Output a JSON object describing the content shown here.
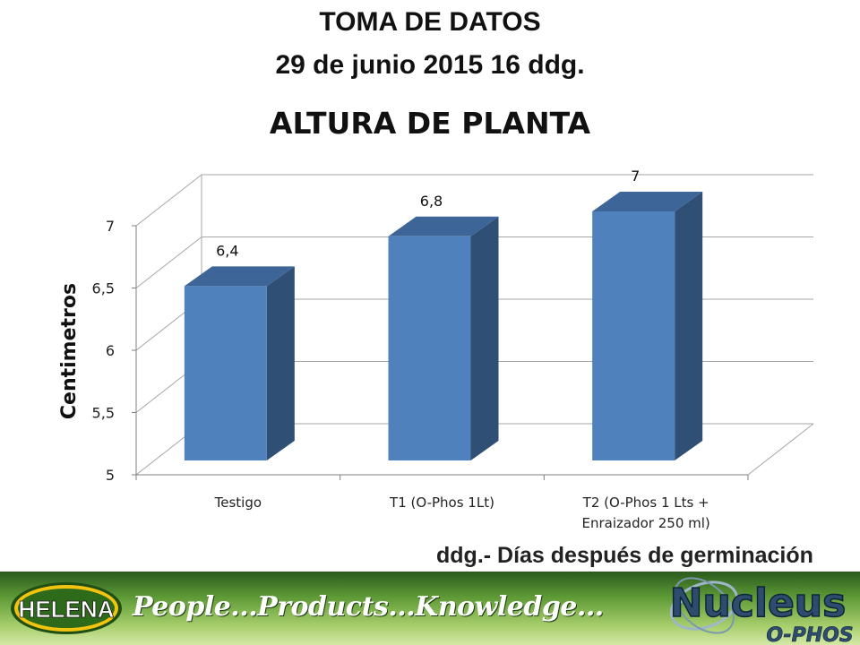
{
  "header": {
    "line1": "TOMA DE DATOS",
    "line2": "29 de junio 2015 16 ddg."
  },
  "chart_data": {
    "type": "bar",
    "title": "ALTURA DE PLANTA",
    "ylabel": "Centimetros",
    "xlabel": "",
    "categories": [
      "Testigo",
      "T1 (O-Phos 1Lt)",
      "T2 (O-Phos 1 Lts + Enraizador 250 ml)"
    ],
    "category_lines": [
      [
        "Testigo"
      ],
      [
        "T1 (O-Phos 1Lt)"
      ],
      [
        "T2 (O-Phos 1 Lts +",
        "Enraizador 250 ml)"
      ]
    ],
    "values": [
      6.4,
      6.8,
      7
    ],
    "value_labels": [
      "6,4",
      "6,8",
      "7"
    ],
    "ylim": [
      5,
      7
    ],
    "yticks": [
      5,
      5.5,
      6,
      6.5,
      7
    ],
    "ytick_labels": [
      "5",
      "5,5",
      "6",
      "6,5",
      "7"
    ],
    "grid": true,
    "style": "3d-column",
    "colors": {
      "bar_front": "#4f81bd",
      "bar_side": "#2f4f75",
      "bar_top": "#3e6597",
      "grid": "#a6a6a6"
    }
  },
  "footnote": "ddg.- Días después de germinación",
  "footer": {
    "brand": "HELENA",
    "slogan": "People...Products...Knowledge...",
    "product_logo": "Nucleus",
    "product_sub": "O-PHOS",
    "colors": {
      "band_dark": "#2a5a1e",
      "band_light": "#d4e8a7",
      "brand_yellow": "#f2c40f"
    }
  }
}
